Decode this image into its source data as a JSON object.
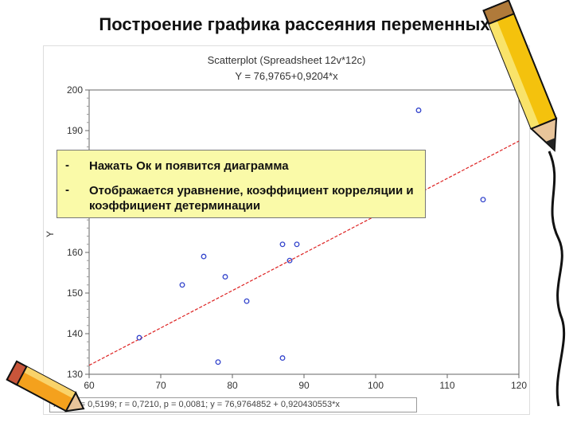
{
  "slide": {
    "title": "Построение графика рассеяния переменных"
  },
  "callout": {
    "bullets": [
      {
        "marker": "-",
        "text": "Нажать Ок и появится диаграмма"
      },
      {
        "marker": "-",
        "text": "Отображается уравнение, коэффициент корреляции и коэффициент детерминации"
      }
    ]
  },
  "chart_data": {
    "type": "scatter",
    "title": "Scatterplot (Spreadsheet 12v*12c)",
    "subtitle": "Y = 76,9765+0,9204*x",
    "xlabel": "",
    "ylabel": "Y",
    "xlim": [
      60,
      120
    ],
    "ylim": [
      130,
      200
    ],
    "x_ticks": [
      "60",
      "70",
      "80",
      "90",
      "100",
      "110",
      "120"
    ],
    "y_ticks": [
      "130",
      "140",
      "150",
      "160",
      "170",
      "180",
      "190",
      "200"
    ],
    "points": [
      {
        "x": 67,
        "y": 139
      },
      {
        "x": 73,
        "y": 152
      },
      {
        "x": 76,
        "y": 159
      },
      {
        "x": 78,
        "y": 133
      },
      {
        "x": 79,
        "y": 154
      },
      {
        "x": 82,
        "y": 148
      },
      {
        "x": 87,
        "y": 134
      },
      {
        "x": 87,
        "y": 162
      },
      {
        "x": 88,
        "y": 158
      },
      {
        "x": 89,
        "y": 162
      },
      {
        "x": 106,
        "y": 195
      },
      {
        "x": 115,
        "y": 173
      }
    ],
    "regression": {
      "intercept": 76.9765,
      "slope": 0.9204
    },
    "point_color": "#3344cc",
    "line_color": "#dd2222",
    "grid": false,
    "stats": "X:Y:  r² = 0,5199;  r = 0,7210, p = 0,0081;  y = 76,9764852 + 0,920430553*x"
  }
}
